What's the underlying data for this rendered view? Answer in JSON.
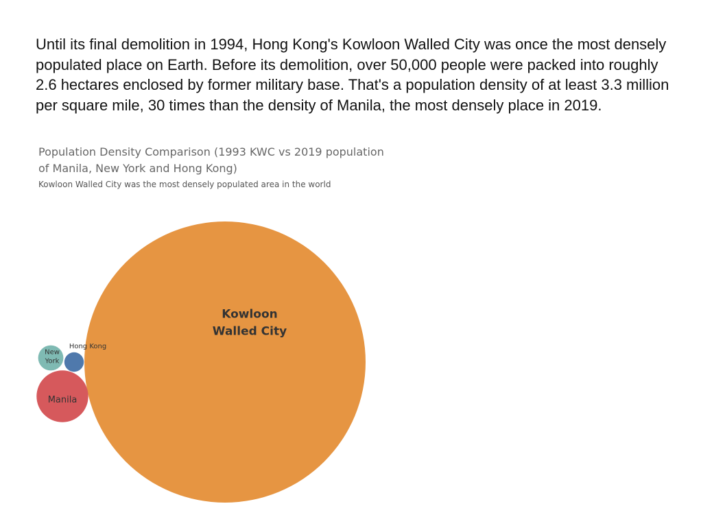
{
  "intro_text": "Until its final demolition in 1994, Hong Kong's Kowloon Walled City was once the most densely populated place on Earth. Before its demolition, over 50,000 people were packed into roughly 2.6 hectares enclosed by former military base. That's a population density of at least 3.3 million per square mile, 30 times than the density of Manila, the most densely place in 2019.",
  "chart_data": {
    "type": "bubble",
    "title": "Population Density Comparison (1993 KWC vs 2019 population of Manila, New York and Hong Kong)",
    "subtitle": "Kowloon Walled City was the most densely populated area in the world",
    "legend": "none",
    "bubbles": [
      {
        "name": "Kowloon Walled City",
        "label_lines": [
          "Kowloon",
          "Walled City"
        ],
        "relative_size": 1.0,
        "color": "#E69542"
      },
      {
        "name": "Manila",
        "label_lines": [
          "Manila"
        ],
        "relative_size": 0.0339,
        "color": "#D6595C"
      },
      {
        "name": "New York",
        "label_lines": [
          "New",
          "York"
        ],
        "relative_size": 0.0081,
        "color": "#7FBAB3"
      },
      {
        "name": "Hong Kong",
        "label_lines": [
          "Hong Kong"
        ],
        "relative_size": 0.0048,
        "color": "#4F79AC"
      }
    ]
  }
}
